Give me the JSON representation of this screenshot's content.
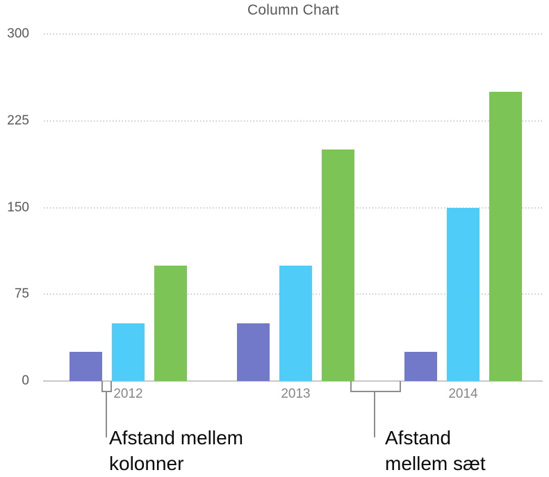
{
  "chart_data": {
    "type": "bar",
    "title": "Column Chart",
    "categories": [
      "2012",
      "2013",
      "2014"
    ],
    "series": [
      {
        "name": "series-1-purple",
        "color": "#7379C9",
        "values": [
          25,
          50,
          25
        ]
      },
      {
        "name": "series-2-blue",
        "color": "#4FCCF8",
        "values": [
          50,
          100,
          150
        ]
      },
      {
        "name": "series-3-green",
        "color": "#7CC455",
        "values": [
          100,
          200,
          250
        ]
      }
    ],
    "xlabel": "",
    "ylabel": "",
    "ylim": [
      0,
      300
    ],
    "y_ticks": [
      300,
      225,
      150,
      75,
      0
    ],
    "grid": "horizontal-dotted",
    "legend": false
  },
  "annotations": {
    "column_gap": {
      "lines": [
        "Afstand mellem",
        "kolonner"
      ]
    },
    "set_gap": {
      "lines": [
        "Afstand",
        "mellem sæt"
      ]
    }
  },
  "colors": {
    "title_text": "#59595C",
    "y_axis_label": "#58585B",
    "x_axis_label": "#86868B",
    "gridline": "#CDCDCD",
    "axis_line": "#C8C8C8",
    "bracket": "#8D8D8D",
    "annotation_text": "#0A0A0A",
    "background": "#FFFFFF"
  }
}
